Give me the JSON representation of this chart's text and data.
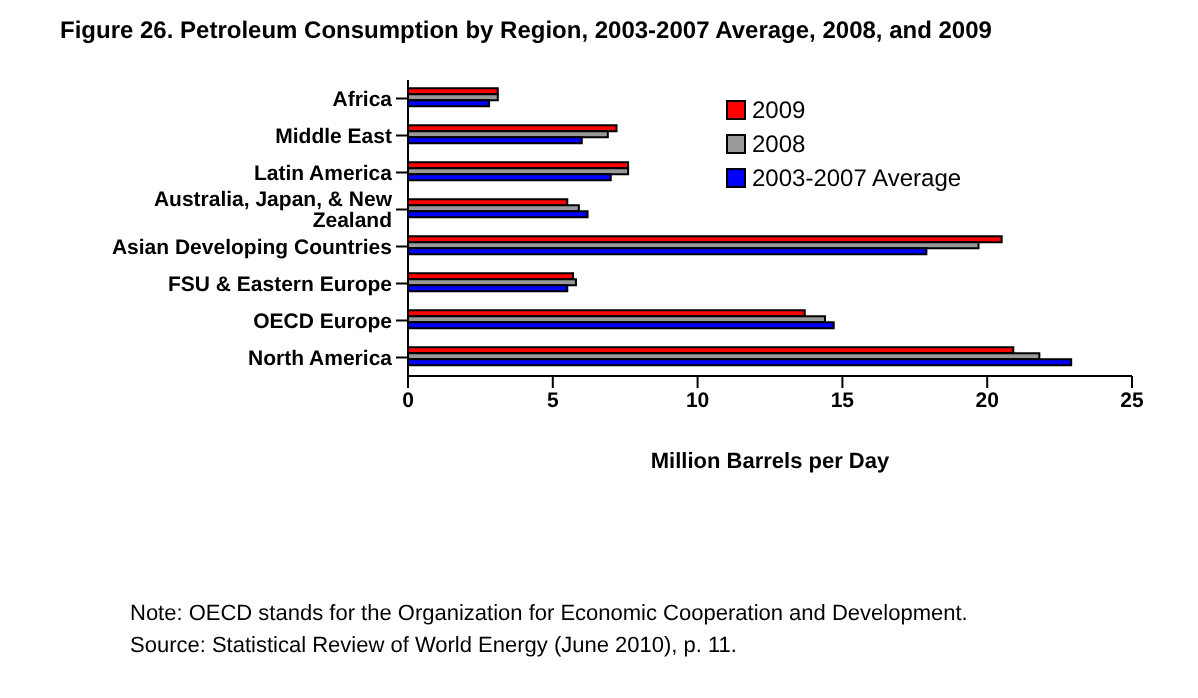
{
  "chart_data": {
    "type": "bar",
    "orientation": "horizontal",
    "title": "Figure 26.  Petroleum Consumption by Region, 2003-2007 Average, 2008, and 2009",
    "xlabel": "Million Barrels per Day",
    "categories": [
      "Africa",
      "Middle East",
      "Latin America",
      "Australia, Japan, & New Zealand",
      "Asian Developing Countries",
      "FSU & Eastern Europe",
      "OECD Europe",
      "North America"
    ],
    "series": [
      {
        "name": "2009",
        "color": "#ff0000",
        "values": [
          3.1,
          7.2,
          7.6,
          5.5,
          20.5,
          5.7,
          13.7,
          20.9
        ]
      },
      {
        "name": "2008",
        "color": "#999999",
        "values": [
          3.1,
          6.9,
          7.6,
          5.9,
          19.7,
          5.8,
          14.4,
          21.8
        ]
      },
      {
        "name": "2003-2007 Average",
        "color": "#0000ff",
        "values": [
          2.8,
          6.0,
          7.0,
          6.2,
          17.9,
          5.5,
          14.7,
          22.9
        ]
      }
    ],
    "xlim": [
      0,
      25
    ],
    "xticks": [
      0,
      5,
      10,
      15,
      20,
      25
    ],
    "grid": false,
    "legend": "right",
    "annotations": [
      "Note: OECD stands for the Organization for Economic Cooperation and Development.",
      "Source:  Statistical Review of World Energy (June 2010), p. 11."
    ]
  }
}
